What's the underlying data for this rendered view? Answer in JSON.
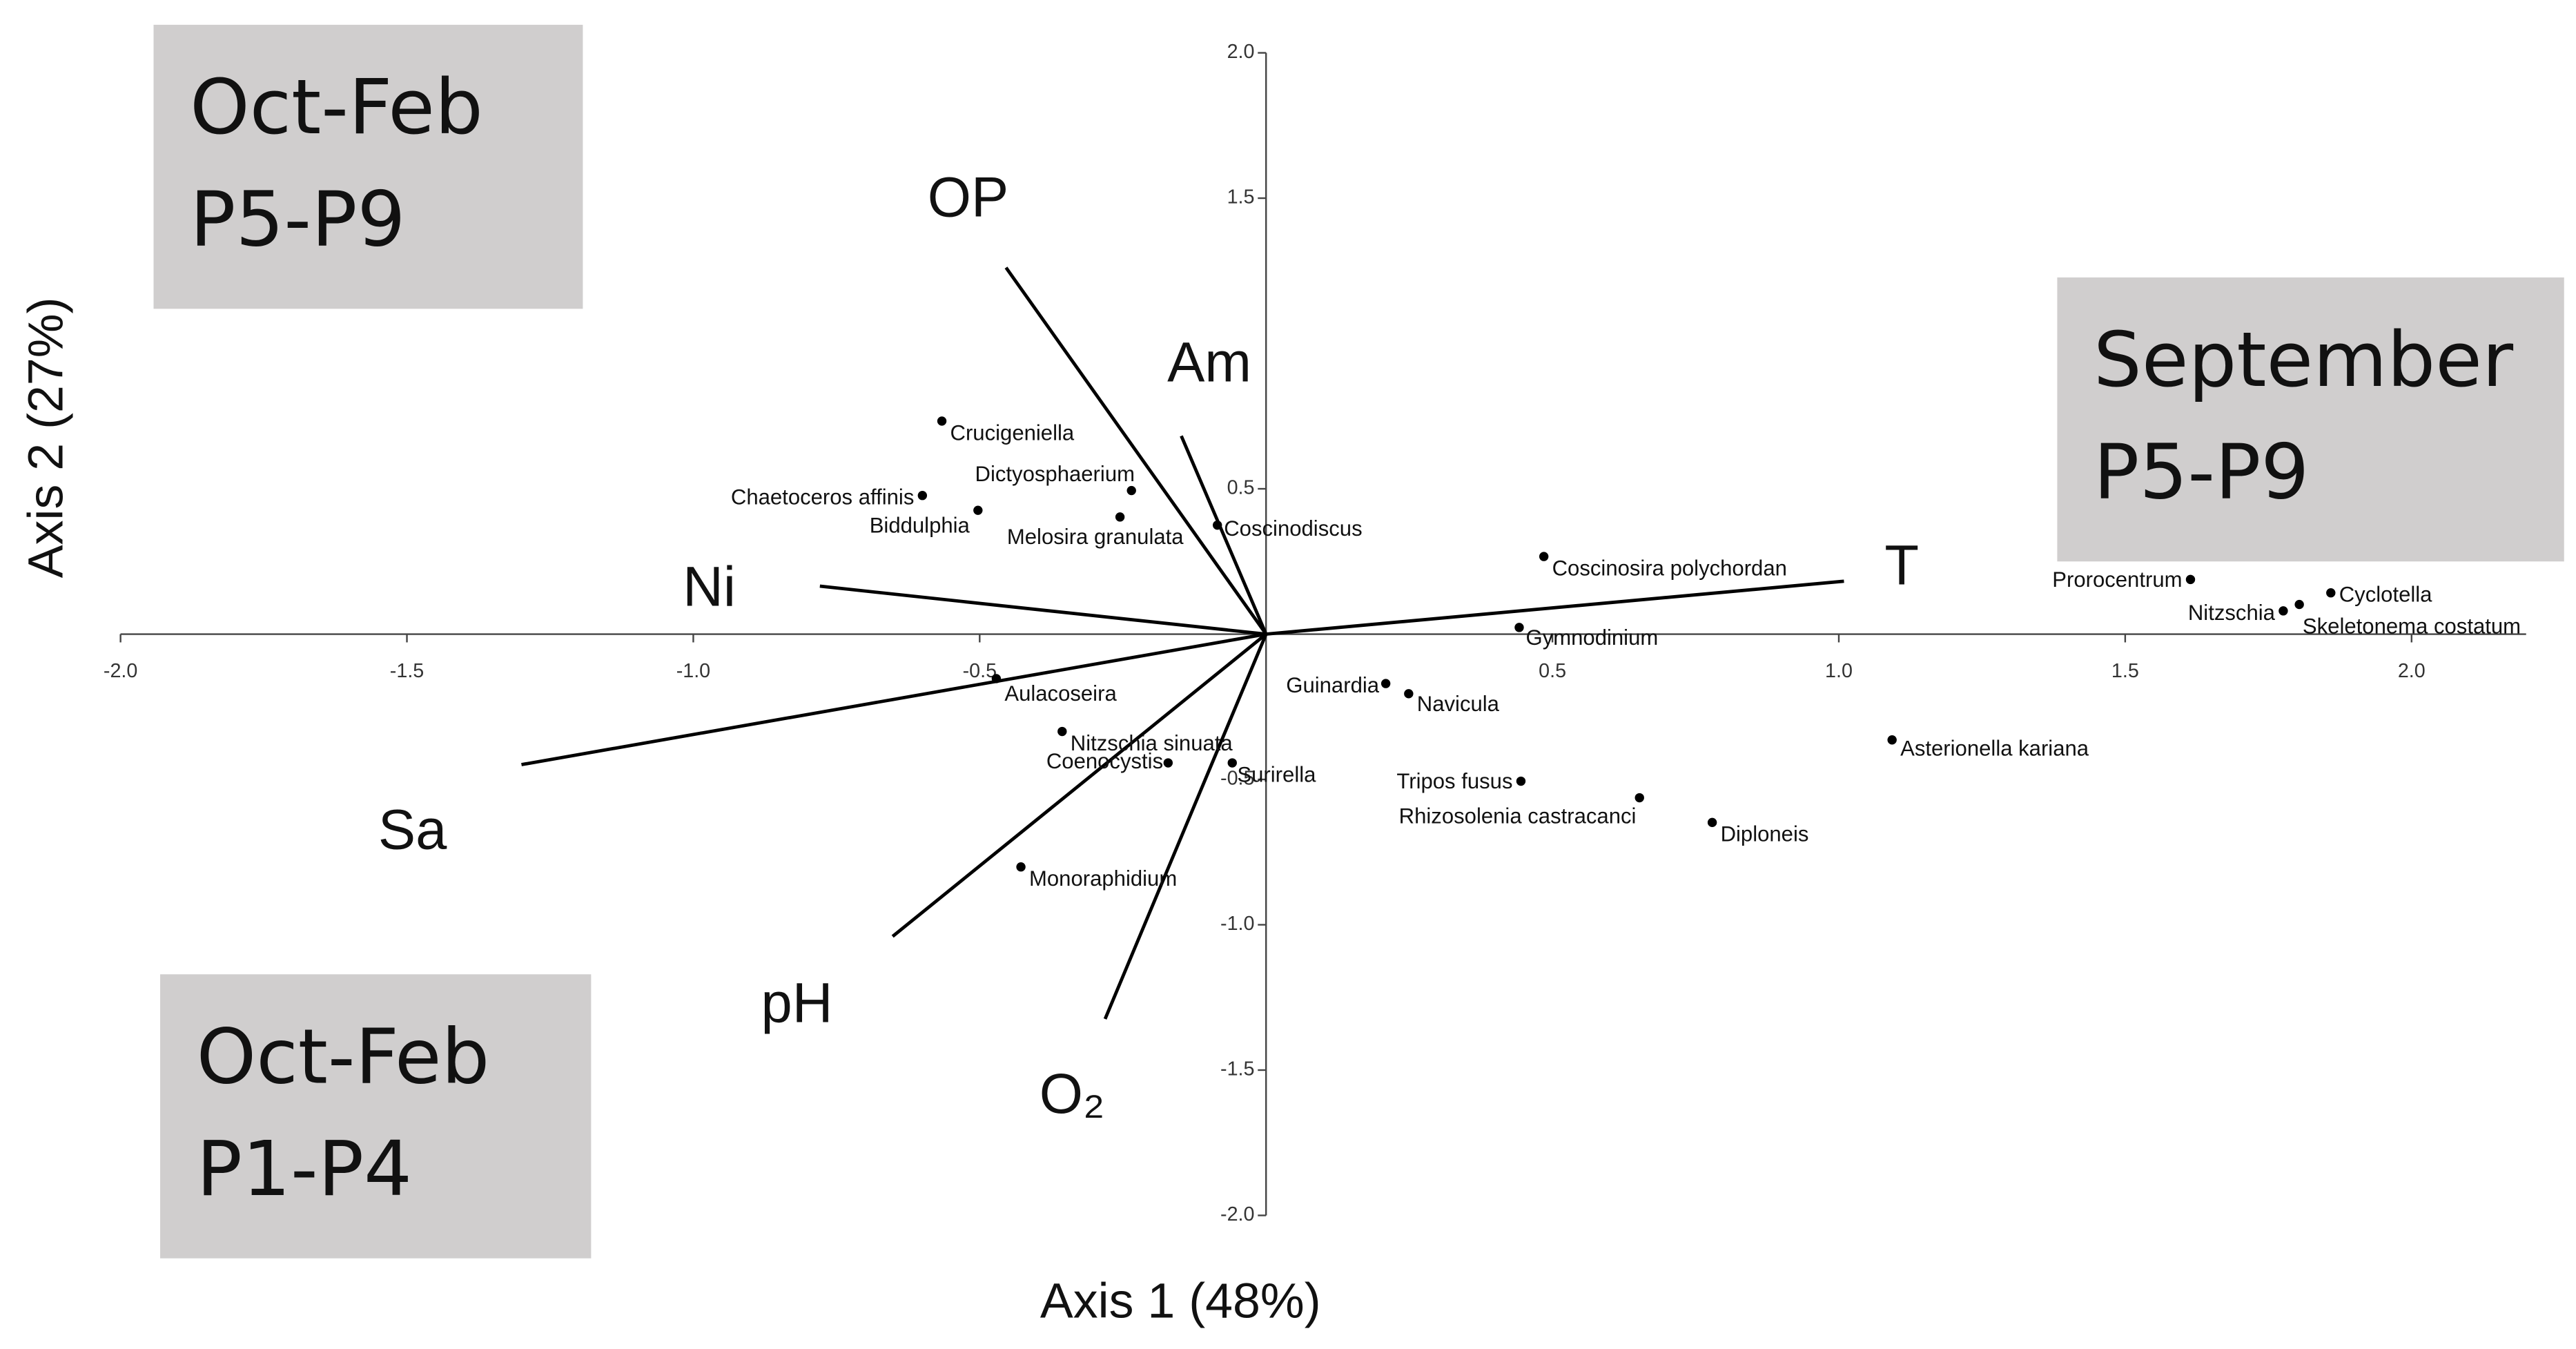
{
  "chart_data": {
    "type": "biplot",
    "x_label": "Axis 1 (48%)",
    "y_label": "Axis 2 (27%)",
    "xlim": [
      -2.0,
      2.2
    ],
    "ylim": [
      -2.0,
      2.0
    ],
    "xticks": [
      {
        "value": -2.0,
        "label": "-2.0"
      },
      {
        "value": -1.5,
        "label": "-1.5"
      },
      {
        "value": -1.0,
        "label": "-1.0"
      },
      {
        "value": -0.5,
        "label": "-0.5"
      },
      {
        "value": 0.5,
        "label": "0.5"
      },
      {
        "value": 1.0,
        "label": "1.0"
      },
      {
        "value": 1.5,
        "label": "1.5"
      },
      {
        "value": 2.0,
        "label": "2.0"
      }
    ],
    "yticks": [
      {
        "value": 2.0,
        "label": "2.0"
      },
      {
        "value": 1.5,
        "label": "1.5"
      },
      {
        "value": 0.5,
        "label": "0.5"
      },
      {
        "value": -0.5,
        "label": "-0.5"
      },
      {
        "value": -1.0,
        "label": "-1.0"
      },
      {
        "value": -1.5,
        "label": "-1.5"
      },
      {
        "value": -2.0,
        "label": "-2.0"
      }
    ],
    "color": "#000000",
    "points": {
      "labels": [
        "Crucigeniella",
        "Dictyosphaerium",
        "Chaetoceros affinis",
        "Biddulphia",
        "Melosira granulata",
        "Coscinodiscus",
        "Coscinosira polychordan",
        "Gymnodinium",
        "Prorocentrum",
        "Cyclotella",
        "Nitzschia",
        "Skeletonema costatum",
        "Aulacoseira",
        "Guinardia",
        "Navicula",
        "Nitzschia sinuata",
        "Coenocystis",
        "Surirella",
        "Tripos fusus",
        "Rhizosolenia castracanci",
        "Diploneis",
        "Asterionella kariana",
        "Monoraphidium"
      ],
      "x": [
        -0.566,
        -0.235,
        -0.6,
        -0.503,
        -0.255,
        -0.085,
        0.485,
        0.442,
        1.614,
        1.859,
        1.776,
        1.804,
        -0.471,
        0.209,
        0.249,
        -0.356,
        -0.171,
        -0.059,
        0.445,
        0.652,
        0.779,
        1.093,
        -0.428
      ],
      "y": [
        0.733,
        0.494,
        0.477,
        0.426,
        0.403,
        0.375,
        0.267,
        0.023,
        0.188,
        0.142,
        0.08,
        0.102,
        -0.153,
        -0.17,
        -0.205,
        -0.335,
        -0.443,
        -0.443,
        -0.506,
        -0.563,
        -0.648,
        -0.364,
        -0.801
      ]
    },
    "vectors": {
      "labels": [
        "OP",
        "Am",
        "Ni",
        "Sa",
        "pH",
        "O₂",
        "T"
      ],
      "x": [
        -0.454,
        -0.148,
        -0.779,
        -1.3,
        -0.652,
        -0.281,
        1.009
      ],
      "y": [
        1.261,
        0.682,
        0.165,
        -0.449,
        -1.04,
        -1.324,
        0.182
      ]
    },
    "annotations": [
      {
        "lines": [
          "Oct-Feb",
          "P5-P9"
        ]
      },
      {
        "lines": [
          "September",
          "P5-P9"
        ]
      },
      {
        "lines": [
          "Oct-Feb",
          "P1-P4"
        ]
      }
    ]
  }
}
